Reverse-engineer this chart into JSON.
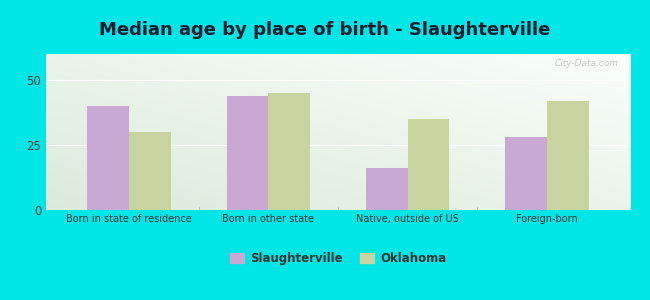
{
  "title": "Median age by place of birth - Slaughterville",
  "categories": [
    "Born in state of residence",
    "Born in other state",
    "Native, outside of US",
    "Foreign-born"
  ],
  "slaughterville_values": [
    40,
    44,
    16,
    28
  ],
  "oklahoma_values": [
    30,
    45,
    35,
    42
  ],
  "slaughterville_color": "#c9a8d4",
  "oklahoma_color": "#c8d4a0",
  "background_color": "#00e5e5",
  "yticks": [
    0,
    25,
    50
  ],
  "ylim": [
    0,
    60
  ],
  "legend_labels": [
    "Slaughterville",
    "Oklahoma"
  ],
  "bar_width": 0.3,
  "title_fontsize": 13,
  "watermark": "City-Data.com"
}
